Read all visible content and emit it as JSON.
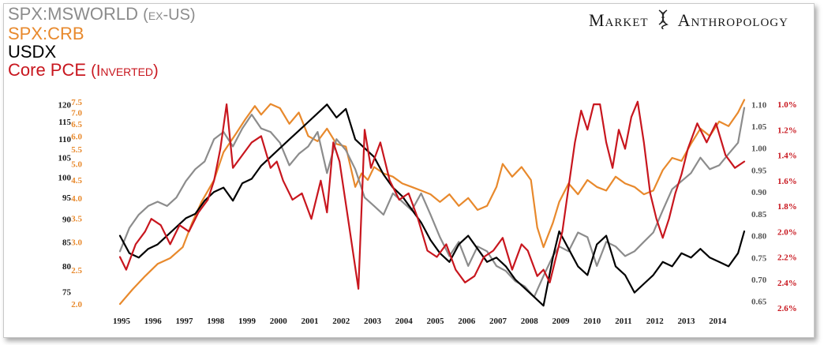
{
  "legend": {
    "msworld": {
      "label": "SPX:MSWORLD",
      "suffix": "(ex-US)",
      "color": "#8c8c8c"
    },
    "crb": {
      "label": "SPX:CRB",
      "color": "#e8892c"
    },
    "usdx": {
      "label": "USDX",
      "color": "#000000"
    },
    "pce": {
      "label": "Core PCE",
      "suffix": "(Inverted)",
      "color": "#c8161e"
    }
  },
  "brand": {
    "word1": "Market",
    "word2": "Anthropology"
  },
  "chart_data": {
    "type": "line",
    "title": "",
    "x_ticks": [
      "1995",
      "1996",
      "1997",
      "1998",
      "1999",
      "2000",
      "2001",
      "2002",
      "2003",
      "2004",
      "2005",
      "2006",
      "2007",
      "2008",
      "2009",
      "2010",
      "2011",
      "2012",
      "2013",
      "2014"
    ],
    "xlim": [
      1995.0,
      2014.9
    ],
    "axes": {
      "msworld": {
        "ticks": [
          "120",
          "115",
          "110",
          "105",
          "100",
          "95",
          "90",
          "85",
          "80",
          "75"
        ],
        "log": true,
        "ylim": [
          72,
          122
        ],
        "color": "#1a1a1a",
        "side": "left"
      },
      "crb": {
        "ticks": [
          "7.5",
          "7.0",
          "6.5",
          "6.0",
          "5.5",
          "5.0",
          "4.5",
          "4.0",
          "3.5",
          "3.0",
          "2.5",
          "2.0"
        ],
        "log": true,
        "ylim": [
          1.95,
          7.7
        ],
        "color": "#e8892c",
        "side": "left"
      },
      "usdx": {
        "ticks": [
          "1.10",
          "1.05",
          "1.00",
          "0.95",
          "0.90",
          "0.85",
          "0.80",
          "0.75",
          "0.70",
          "0.65"
        ],
        "log": false,
        "ylim": [
          0.635,
          1.115
        ],
        "color": "#555555",
        "side": "right"
      },
      "pce": {
        "ticks": [
          "1.0%",
          "1.2%",
          "1.4%",
          "1.6%",
          "1.8%",
          "2.0%",
          "2.2%",
          "2.4%",
          "2.6%"
        ],
        "log": false,
        "inverted": true,
        "ylim": [
          0.95,
          2.6
        ],
        "color": "#c8161e",
        "side": "right"
      }
    },
    "series": [
      {
        "key": "crb",
        "name": "SPX:CRB",
        "color": "#e8892c",
        "axis": "crb",
        "x": [
          1995.0,
          1995.4,
          1995.8,
          1996.2,
          1996.6,
          1997.0,
          1997.3,
          1997.6,
          1998.0,
          1998.3,
          1998.7,
          1999.0,
          1999.3,
          1999.5,
          1999.8,
          2000.1,
          2000.4,
          2000.7,
          2001.0,
          2001.3,
          2001.6,
          2001.9,
          2002.2,
          2002.5,
          2002.7,
          2002.9,
          2003.1,
          2003.4,
          2003.7,
          2004.0,
          2004.3,
          2004.6,
          2004.9,
          2005.2,
          2005.5,
          2005.8,
          2006.1,
          2006.4,
          2006.7,
          2007.0,
          2007.2,
          2007.5,
          2007.8,
          2008.1,
          2008.3,
          2008.5,
          2008.8,
          2009.0,
          2009.3,
          2009.6,
          2009.9,
          2010.2,
          2010.5,
          2010.8,
          2011.1,
          2011.4,
          2011.7,
          2012.0,
          2012.3,
          2012.6,
          2012.9,
          2013.2,
          2013.5,
          2013.8,
          2014.1,
          2014.4,
          2014.7,
          2014.9
        ],
        "y": [
          2.0,
          2.2,
          2.4,
          2.6,
          2.7,
          2.9,
          3.4,
          3.9,
          4.5,
          5.4,
          6.1,
          6.7,
          7.3,
          6.9,
          7.4,
          7.2,
          6.5,
          7.0,
          6.0,
          5.8,
          6.3,
          5.7,
          5.6,
          4.3,
          4.7,
          4.5,
          4.9,
          4.7,
          4.6,
          4.4,
          4.3,
          4.2,
          4.1,
          3.9,
          4.1,
          3.8,
          4.0,
          3.7,
          3.8,
          4.3,
          5.0,
          4.6,
          4.9,
          4.5,
          3.3,
          2.9,
          3.4,
          3.9,
          4.4,
          4.1,
          4.5,
          4.3,
          4.2,
          4.6,
          4.4,
          4.3,
          4.1,
          4.2,
          4.8,
          5.2,
          5.1,
          5.7,
          6.3,
          6.0,
          6.6,
          6.4,
          7.0,
          7.6
        ]
      },
      {
        "key": "msworld",
        "name": "SPX:MSWORLD",
        "color": "#8c8c8c",
        "axis": "msworld",
        "x": [
          1995.0,
          1995.3,
          1995.6,
          1995.9,
          1996.2,
          1996.5,
          1996.8,
          1997.1,
          1997.4,
          1997.7,
          1998.0,
          1998.3,
          1998.6,
          1998.9,
          1999.2,
          1999.5,
          1999.8,
          2000.1,
          2000.4,
          2000.7,
          2001.0,
          2001.3,
          2001.6,
          2001.9,
          2002.2,
          2002.5,
          2002.8,
          2003.1,
          2003.4,
          2003.7,
          2004.0,
          2004.3,
          2004.6,
          2004.9,
          2005.2,
          2005.5,
          2005.8,
          2006.1,
          2006.4,
          2006.7,
          2007.0,
          2007.3,
          2007.6,
          2007.9,
          2008.2,
          2008.5,
          2008.8,
          2009.0,
          2009.3,
          2009.6,
          2009.9,
          2010.2,
          2010.5,
          2010.8,
          2011.1,
          2011.4,
          2011.7,
          2012.0,
          2012.3,
          2012.6,
          2012.9,
          2013.2,
          2013.5,
          2013.8,
          2014.1,
          2014.4,
          2014.7,
          2014.9
        ],
        "y": [
          83,
          88,
          91,
          93,
          94,
          93,
          95,
          99,
          102,
          104,
          110,
          112,
          108,
          113,
          117,
          113,
          112,
          109,
          103,
          106,
          108,
          112,
          101,
          110,
          107,
          102,
          95,
          93,
          91,
          96,
          94,
          92,
          96,
          91,
          86,
          82,
          85,
          80,
          84,
          83,
          80,
          79,
          77,
          76,
          74,
          78,
          82,
          84,
          83,
          87,
          86,
          80,
          85,
          84,
          82,
          83,
          85,
          87,
          92,
          97,
          99,
          101,
          105,
          102,
          103,
          106,
          109,
          119
        ]
      },
      {
        "key": "usdx",
        "name": "USDX",
        "color": "#000000",
        "axis": "usdx",
        "x": [
          1995.0,
          1995.3,
          1995.6,
          1995.9,
          1996.2,
          1996.5,
          1996.8,
          1997.1,
          1997.4,
          1997.7,
          1998.0,
          1998.3,
          1998.6,
          1998.9,
          1999.2,
          1999.5,
          1999.8,
          2000.1,
          2000.4,
          2000.7,
          2001.0,
          2001.3,
          2001.6,
          2001.9,
          2002.2,
          2002.5,
          2002.8,
          2003.1,
          2003.4,
          2003.7,
          2004.0,
          2004.3,
          2004.6,
          2004.9,
          2005.2,
          2005.5,
          2005.8,
          2006.1,
          2006.4,
          2006.7,
          2007.0,
          2007.3,
          2007.6,
          2007.9,
          2008.2,
          2008.5,
          2008.8,
          2009.0,
          2009.3,
          2009.6,
          2009.9,
          2010.2,
          2010.5,
          2010.8,
          2011.1,
          2011.4,
          2011.7,
          2012.0,
          2012.3,
          2012.6,
          2012.9,
          2013.2,
          2013.5,
          2013.8,
          2014.1,
          2014.4,
          2014.7,
          2014.9
        ],
        "y": [
          0.8,
          0.76,
          0.75,
          0.77,
          0.78,
          0.8,
          0.82,
          0.84,
          0.85,
          0.88,
          0.9,
          0.91,
          0.88,
          0.92,
          0.93,
          0.96,
          0.98,
          1.0,
          1.02,
          1.04,
          1.06,
          1.08,
          1.1,
          1.07,
          1.09,
          1.02,
          1.0,
          0.98,
          0.94,
          0.91,
          0.89,
          0.86,
          0.83,
          0.79,
          0.76,
          0.74,
          0.78,
          0.8,
          0.77,
          0.74,
          0.75,
          0.73,
          0.7,
          0.68,
          0.66,
          0.64,
          0.75,
          0.81,
          0.77,
          0.73,
          0.71,
          0.78,
          0.8,
          0.73,
          0.71,
          0.67,
          0.69,
          0.71,
          0.74,
          0.73,
          0.76,
          0.75,
          0.77,
          0.75,
          0.74,
          0.73,
          0.76,
          0.81
        ]
      },
      {
        "key": "pce",
        "name": "Core PCE",
        "color": "#c8161e",
        "axis": "pce",
        "x": [
          1995.0,
          1995.2,
          1995.5,
          1995.8,
          1996.0,
          1996.3,
          1996.6,
          1996.9,
          1997.2,
          1997.5,
          1997.8,
          1998.0,
          1998.2,
          1998.4,
          1998.6,
          1998.9,
          1999.2,
          1999.5,
          1999.8,
          2000.0,
          2000.2,
          2000.5,
          2000.8,
          2001.1,
          2001.4,
          2001.6,
          2001.8,
          2002.0,
          2002.3,
          2002.6,
          2002.8,
          2003.0,
          2003.3,
          2003.6,
          2003.9,
          2004.2,
          2004.5,
          2004.8,
          2005.1,
          2005.4,
          2005.7,
          2006.0,
          2006.3,
          2006.6,
          2006.9,
          2007.2,
          2007.5,
          2007.8,
          2008.0,
          2008.3,
          2008.5,
          2008.7,
          2008.9,
          2009.1,
          2009.3,
          2009.5,
          2009.7,
          2009.9,
          2010.1,
          2010.3,
          2010.5,
          2010.7,
          2010.9,
          2011.1,
          2011.3,
          2011.5,
          2011.7,
          2011.9,
          2012.1,
          2012.3,
          2012.5,
          2012.7,
          2012.9,
          2013.1,
          2013.4,
          2013.7,
          2014.0,
          2014.3,
          2014.6,
          2014.9
        ],
        "y": [
          2.2,
          2.3,
          2.1,
          2.0,
          1.9,
          1.95,
          2.1,
          1.95,
          2.0,
          1.85,
          1.75,
          1.6,
          1.35,
          1.0,
          1.5,
          1.4,
          1.3,
          1.25,
          1.5,
          1.45,
          1.6,
          1.75,
          1.7,
          1.9,
          1.6,
          1.85,
          1.3,
          1.45,
          1.95,
          2.45,
          1.2,
          1.5,
          1.3,
          1.6,
          1.75,
          1.7,
          1.9,
          2.15,
          2.2,
          2.1,
          2.3,
          2.4,
          2.35,
          2.2,
          2.15,
          2.05,
          2.3,
          2.1,
          2.15,
          2.35,
          2.3,
          2.4,
          2.2,
          2.0,
          1.65,
          1.3,
          1.05,
          1.2,
          1.0,
          1.0,
          1.3,
          1.5,
          1.2,
          1.35,
          1.1,
          0.98,
          1.3,
          1.7,
          1.9,
          2.05,
          1.9,
          1.7,
          1.55,
          1.35,
          1.15,
          1.3,
          1.15,
          1.4,
          1.5,
          1.45
        ]
      }
    ]
  }
}
